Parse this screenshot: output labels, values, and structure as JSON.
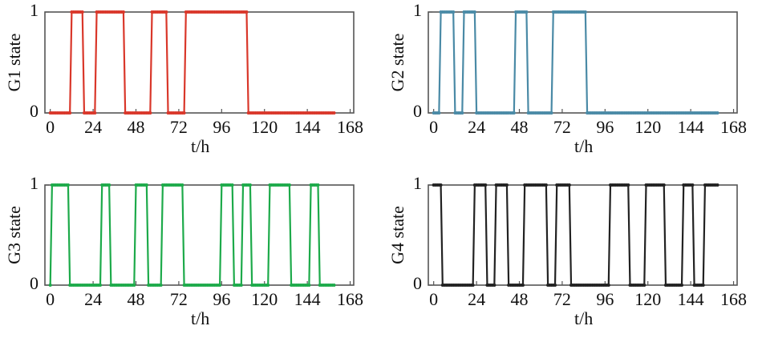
{
  "chart_data": [
    {
      "type": "line",
      "xlabel": "t/h",
      "ylabel": "G1 state",
      "color": "#d9372a",
      "xlim": [
        -3,
        170
      ],
      "ylim": [
        0,
        1
      ],
      "xticks": [
        0,
        24,
        48,
        72,
        96,
        120,
        144,
        168
      ],
      "yticks": [
        0,
        1
      ],
      "x": [
        0,
        1,
        2,
        3,
        4,
        5,
        6,
        7,
        8,
        9,
        10,
        11,
        12,
        13,
        14,
        15,
        16,
        17,
        18,
        19,
        20,
        21,
        22,
        23,
        24,
        25,
        26,
        27,
        28,
        29,
        30,
        31,
        32,
        33,
        34,
        35,
        36,
        37,
        38,
        39,
        40,
        41,
        42,
        43,
        44,
        45,
        46,
        47,
        48,
        49,
        50,
        51,
        52,
        53,
        54,
        55,
        56,
        57,
        58,
        59,
        60,
        61,
        62,
        63,
        64,
        65,
        66,
        67,
        68,
        69,
        70,
        71,
        72,
        73,
        74,
        75,
        76,
        77,
        78,
        79,
        80,
        81,
        82,
        83,
        84,
        85,
        86,
        87,
        88,
        89,
        90,
        91,
        92,
        93,
        94,
        95,
        96,
        97,
        98,
        99,
        100,
        101,
        102,
        103,
        104,
        105,
        106,
        107,
        108,
        109,
        110,
        111,
        112,
        113,
        114,
        115,
        116,
        117,
        118,
        119,
        120,
        121,
        122,
        123,
        124,
        125,
        126,
        127,
        128,
        129,
        130,
        131,
        132,
        133,
        134,
        135,
        136,
        137,
        138,
        139,
        140,
        141,
        142,
        143,
        144,
        145,
        146,
        147,
        148,
        149,
        150,
        151,
        152,
        153,
        154,
        155,
        156,
        157,
        158,
        159
      ],
      "values": [
        0,
        0,
        0,
        0,
        0,
        0,
        0,
        0,
        0,
        0,
        0,
        0,
        1,
        1,
        1,
        1,
        1,
        1,
        1,
        0,
        0,
        0,
        0,
        0,
        0,
        0,
        1,
        1,
        1,
        1,
        1,
        1,
        1,
        1,
        1,
        1,
        1,
        1,
        1,
        1,
        1,
        1,
        0,
        0,
        0,
        0,
        0,
        0,
        0,
        0,
        0,
        0,
        0,
        0,
        0,
        0,
        0,
        1,
        1,
        1,
        1,
        1,
        1,
        1,
        1,
        1,
        0,
        0,
        0,
        0,
        0,
        0,
        0,
        0,
        0,
        0,
        1,
        1,
        1,
        1,
        1,
        1,
        1,
        1,
        1,
        1,
        1,
        1,
        1,
        1,
        1,
        1,
        1,
        1,
        1,
        1,
        1,
        1,
        1,
        1,
        1,
        1,
        1,
        1,
        1,
        1,
        1,
        1,
        1,
        1,
        1,
        0,
        0,
        0,
        0,
        0,
        0,
        0,
        0,
        0,
        0,
        0,
        0,
        0,
        0,
        0,
        0,
        0,
        0,
        0,
        0,
        0,
        0,
        0,
        0,
        0,
        0,
        0,
        0,
        0,
        0,
        0,
        0,
        0,
        0,
        0,
        0,
        0,
        0,
        0,
        0,
        0,
        0,
        0,
        0,
        0,
        0,
        0,
        0,
        0
      ]
    },
    {
      "type": "line",
      "xlabel": "t/h",
      "ylabel": "G2 state",
      "color": "#4a8aa6",
      "xlim": [
        -3,
        170
      ],
      "ylim": [
        0,
        1
      ],
      "xticks": [
        0,
        24,
        48,
        72,
        96,
        120,
        144,
        168
      ],
      "yticks": [
        0,
        1
      ],
      "x": [
        0,
        1,
        2,
        3,
        4,
        5,
        6,
        7,
        8,
        9,
        10,
        11,
        12,
        13,
        14,
        15,
        16,
        17,
        18,
        19,
        20,
        21,
        22,
        23,
        24,
        25,
        26,
        27,
        28,
        29,
        30,
        31,
        32,
        33,
        34,
        35,
        36,
        37,
        38,
        39,
        40,
        41,
        42,
        43,
        44,
        45,
        46,
        47,
        48,
        49,
        50,
        51,
        52,
        53,
        54,
        55,
        56,
        57,
        58,
        59,
        60,
        61,
        62,
        63,
        64,
        65,
        66,
        67,
        68,
        69,
        70,
        71,
        72,
        73,
        74,
        75,
        76,
        77,
        78,
        79,
        80,
        81,
        82,
        83,
        84,
        85,
        86,
        87,
        88,
        89,
        90,
        91,
        92,
        93,
        94,
        95,
        96,
        97,
        98,
        99,
        100,
        101,
        102,
        103,
        104,
        105,
        106,
        107,
        108,
        109,
        110,
        111,
        112,
        113,
        114,
        115,
        116,
        117,
        118,
        119,
        120,
        121,
        122,
        123,
        124,
        125,
        126,
        127,
        128,
        129,
        130,
        131,
        132,
        133,
        134,
        135,
        136,
        137,
        138,
        139,
        140,
        141,
        142,
        143,
        144,
        145,
        146,
        147,
        148,
        149,
        150,
        151,
        152,
        153,
        154,
        155,
        156,
        157,
        158,
        159
      ],
      "values": [
        0,
        0,
        0,
        0,
        1,
        1,
        1,
        1,
        1,
        1,
        1,
        1,
        0,
        0,
        0,
        0,
        0,
        1,
        1,
        1,
        1,
        1,
        1,
        1,
        0,
        0,
        0,
        0,
        0,
        0,
        0,
        0,
        0,
        0,
        0,
        0,
        0,
        0,
        0,
        0,
        0,
        0,
        0,
        0,
        0,
        0,
        1,
        1,
        1,
        1,
        1,
        1,
        1,
        0,
        0,
        0,
        0,
        0,
        0,
        0,
        0,
        0,
        0,
        0,
        0,
        0,
        0,
        1,
        1,
        1,
        1,
        1,
        1,
        1,
        1,
        1,
        1,
        1,
        1,
        1,
        1,
        1,
        1,
        1,
        1,
        1,
        0,
        0,
        0,
        0,
        0,
        0,
        0,
        0,
        0,
        0,
        0,
        0,
        0,
        0,
        0,
        0,
        0,
        0,
        0,
        0,
        0,
        0,
        0,
        0,
        0,
        0,
        0,
        0,
        0,
        0,
        0,
        0,
        0,
        0,
        0,
        0,
        0,
        0,
        0,
        0,
        0,
        0,
        0,
        0,
        0,
        0,
        0,
        0,
        0,
        0,
        0,
        0,
        0,
        0,
        0,
        0,
        0,
        0,
        0,
        0,
        0,
        0,
        0,
        0,
        0,
        0,
        0,
        0,
        0,
        0,
        0,
        0,
        0,
        0
      ]
    },
    {
      "type": "line",
      "xlabel": "t/h",
      "ylabel": "G3 state",
      "color": "#1daa4a",
      "xlim": [
        -3,
        170
      ],
      "ylim": [
        0,
        1
      ],
      "xticks": [
        0,
        24,
        48,
        72,
        96,
        120,
        144,
        168
      ],
      "yticks": [
        0,
        1
      ],
      "x": [
        0,
        1,
        2,
        3,
        4,
        5,
        6,
        7,
        8,
        9,
        10,
        11,
        12,
        13,
        14,
        15,
        16,
        17,
        18,
        19,
        20,
        21,
        22,
        23,
        24,
        25,
        26,
        27,
        28,
        29,
        30,
        31,
        32,
        33,
        34,
        35,
        36,
        37,
        38,
        39,
        40,
        41,
        42,
        43,
        44,
        45,
        46,
        47,
        48,
        49,
        50,
        51,
        52,
        53,
        54,
        55,
        56,
        57,
        58,
        59,
        60,
        61,
        62,
        63,
        64,
        65,
        66,
        67,
        68,
        69,
        70,
        71,
        72,
        73,
        74,
        75,
        76,
        77,
        78,
        79,
        80,
        81,
        82,
        83,
        84,
        85,
        86,
        87,
        88,
        89,
        90,
        91,
        92,
        93,
        94,
        95,
        96,
        97,
        98,
        99,
        100,
        101,
        102,
        103,
        104,
        105,
        106,
        107,
        108,
        109,
        110,
        111,
        112,
        113,
        114,
        115,
        116,
        117,
        118,
        119,
        120,
        121,
        122,
        123,
        124,
        125,
        126,
        127,
        128,
        129,
        130,
        131,
        132,
        133,
        134,
        135,
        136,
        137,
        138,
        139,
        140,
        141,
        142,
        143,
        144,
        145,
        146,
        147,
        148,
        149,
        150,
        151,
        152,
        153,
        154,
        155,
        156,
        157,
        158,
        159
      ],
      "values": [
        0,
        1,
        1,
        1,
        1,
        1,
        1,
        1,
        1,
        1,
        1,
        0,
        0,
        0,
        0,
        0,
        0,
        0,
        0,
        0,
        0,
        0,
        0,
        0,
        0,
        0,
        0,
        0,
        0,
        1,
        1,
        1,
        1,
        1,
        0,
        0,
        0,
        0,
        0,
        0,
        0,
        0,
        0,
        0,
        0,
        0,
        0,
        0,
        1,
        1,
        1,
        1,
        1,
        1,
        1,
        0,
        0,
        0,
        0,
        0,
        0,
        0,
        0,
        1,
        1,
        1,
        1,
        1,
        1,
        1,
        1,
        1,
        1,
        1,
        1,
        0,
        0,
        0,
        0,
        0,
        0,
        0,
        0,
        0,
        0,
        0,
        0,
        0,
        0,
        0,
        0,
        0,
        0,
        0,
        0,
        0,
        1,
        1,
        1,
        1,
        1,
        1,
        1,
        0,
        0,
        0,
        0,
        0,
        1,
        1,
        1,
        1,
        1,
        0,
        0,
        0,
        0,
        0,
        0,
        0,
        0,
        0,
        0,
        1,
        1,
        1,
        1,
        1,
        1,
        1,
        1,
        1,
        1,
        1,
        1,
        0,
        0,
        0,
        0,
        0,
        0,
        0,
        0,
        0,
        0,
        0,
        1,
        1,
        1,
        1,
        1,
        0,
        0,
        0,
        0,
        0,
        0,
        0,
        0,
        0
      ]
    },
    {
      "type": "line",
      "xlabel": "t/h",
      "ylabel": "G4 state",
      "color": "#222222",
      "xlim": [
        -3,
        170
      ],
      "ylim": [
        0,
        1
      ],
      "xticks": [
        0,
        24,
        48,
        72,
        96,
        120,
        144,
        168
      ],
      "yticks": [
        0,
        1
      ],
      "x": [
        0,
        1,
        2,
        3,
        4,
        5,
        6,
        7,
        8,
        9,
        10,
        11,
        12,
        13,
        14,
        15,
        16,
        17,
        18,
        19,
        20,
        21,
        22,
        23,
        24,
        25,
        26,
        27,
        28,
        29,
        30,
        31,
        32,
        33,
        34,
        35,
        36,
        37,
        38,
        39,
        40,
        41,
        42,
        43,
        44,
        45,
        46,
        47,
        48,
        49,
        50,
        51,
        52,
        53,
        54,
        55,
        56,
        57,
        58,
        59,
        60,
        61,
        62,
        63,
        64,
        65,
        66,
        67,
        68,
        69,
        70,
        71,
        72,
        73,
        74,
        75,
        76,
        77,
        78,
        79,
        80,
        81,
        82,
        83,
        84,
        85,
        86,
        87,
        88,
        89,
        90,
        91,
        92,
        93,
        94,
        95,
        96,
        97,
        98,
        99,
        100,
        101,
        102,
        103,
        104,
        105,
        106,
        107,
        108,
        109,
        110,
        111,
        112,
        113,
        114,
        115,
        116,
        117,
        118,
        119,
        120,
        121,
        122,
        123,
        124,
        125,
        126,
        127,
        128,
        129,
        130,
        131,
        132,
        133,
        134,
        135,
        136,
        137,
        138,
        139,
        140,
        141,
        142,
        143,
        144,
        145,
        146,
        147,
        148,
        149,
        150,
        151,
        152,
        153,
        154,
        155,
        156,
        157,
        158,
        159
      ],
      "values": [
        1,
        1,
        1,
        1,
        1,
        0,
        0,
        0,
        0,
        0,
        0,
        0,
        0,
        0,
        0,
        0,
        0,
        0,
        0,
        0,
        0,
        0,
        0,
        1,
        1,
        1,
        1,
        1,
        1,
        1,
        0,
        0,
        0,
        0,
        0,
        1,
        1,
        1,
        1,
        1,
        1,
        1,
        0,
        0,
        0,
        0,
        0,
        0,
        0,
        0,
        0,
        1,
        1,
        1,
        1,
        1,
        1,
        1,
        1,
        1,
        1,
        1,
        1,
        1,
        0,
        0,
        0,
        0,
        0,
        1,
        1,
        1,
        1,
        1,
        1,
        1,
        1,
        0,
        0,
        0,
        0,
        0,
        0,
        0,
        0,
        0,
        0,
        0,
        0,
        0,
        0,
        0,
        0,
        0,
        0,
        0,
        0,
        0,
        0,
        1,
        1,
        1,
        1,
        1,
        1,
        1,
        1,
        1,
        1,
        1,
        0,
        0,
        0,
        0,
        0,
        0,
        0,
        0,
        0,
        1,
        1,
        1,
        1,
        1,
        1,
        1,
        1,
        1,
        1,
        1,
        0,
        0,
        0,
        0,
        0,
        0,
        0,
        0,
        0,
        0,
        1,
        1,
        1,
        1,
        1,
        1,
        0,
        0,
        0,
        0,
        0,
        0,
        1,
        1,
        1,
        1,
        1,
        1,
        1,
        1
      ]
    }
  ]
}
